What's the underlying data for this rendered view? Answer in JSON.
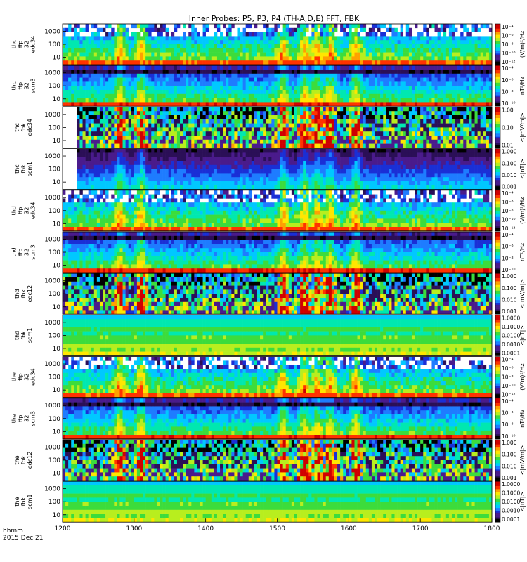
{
  "title": "Inner Probes: P5, P3, P4 (TH-A,D,E) FFT, FBK",
  "footer": {
    "units": "hhmm",
    "date": "2015 Dec 21"
  },
  "colors": {
    "colormap": [
      "#000000",
      "#2b0f57",
      "#4a1b8c",
      "#1a2fd6",
      "#1e7cff",
      "#00c8ff",
      "#00e8b0",
      "#3cdc3c",
      "#b8ee1e",
      "#ffe600",
      "#ffa000",
      "#ff3200",
      "#d00000"
    ]
  },
  "chart_data": {
    "type": "heatmap",
    "x_axis": {
      "ticks": [
        "1200",
        "1300",
        "1400",
        "1500",
        "1600",
        "1700",
        "1800"
      ],
      "range": [
        1200,
        1800
      ],
      "label": "hhmm"
    },
    "panels": [
      {
        "probe": "thc",
        "label": [
          "thc",
          "ffp",
          "32",
          "edc34"
        ],
        "kind": "ffp_e",
        "yticks": [
          "10",
          "100",
          "1000"
        ],
        "cbar_ticks": [
          "10⁻⁴",
          "10⁻⁶",
          "10⁻⁸",
          "10⁻¹⁰",
          "10⁻¹²"
        ],
        "cbar_unit": "(V/m)²/Hz"
      },
      {
        "probe": "thc",
        "label": [
          "thc",
          "ffp",
          "32",
          "scm3"
        ],
        "kind": "ffp_b",
        "yticks": [
          "10",
          "100",
          "1000"
        ],
        "cbar_ticks": [
          "10⁻⁴",
          "10⁻⁶",
          "10⁻⁸",
          "10⁻¹⁰"
        ],
        "cbar_unit": "nT²/Hz"
      },
      {
        "probe": "thc",
        "label": [
          "thc",
          "fbk",
          "edc34"
        ],
        "kind": "fbk_e",
        "yticks": [
          "10",
          "100",
          "1000"
        ],
        "cbar_ticks": [
          "1.00",
          "0.10",
          "0.01"
        ],
        "cbar_unit": "<|mV/m|>"
      },
      {
        "probe": "thc",
        "label": [
          "thc",
          "fbk",
          "scm1"
        ],
        "kind": "fbk_b",
        "yticks": [
          "10",
          "100",
          "1000"
        ],
        "cbar_ticks": [
          "1.000",
          "0.100",
          "0.010",
          "0.001"
        ],
        "cbar_unit": "<|nT|>"
      },
      {
        "probe": "thd",
        "label": [
          "thd",
          "ffp",
          "32",
          "edc34"
        ],
        "kind": "ffp_e",
        "yticks": [
          "10",
          "100",
          "1000"
        ],
        "cbar_ticks": [
          "10⁻⁴",
          "10⁻⁶",
          "10⁻⁸",
          "10⁻¹⁰",
          "10⁻¹²"
        ],
        "cbar_unit": "(V/m)²/Hz"
      },
      {
        "probe": "thd",
        "label": [
          "thd",
          "ffp",
          "32",
          "scm3"
        ],
        "kind": "ffp_b",
        "yticks": [
          "10",
          "100",
          "1000"
        ],
        "cbar_ticks": [
          "10⁻⁴",
          "10⁻⁶",
          "10⁻⁸",
          "10⁻¹⁰"
        ],
        "cbar_unit": "nT²/Hz"
      },
      {
        "probe": "thd",
        "label": [
          "thd",
          "fbk",
          "edc12"
        ],
        "kind": "fbk_e",
        "yticks": [
          "10",
          "100",
          "1000"
        ],
        "cbar_ticks": [
          "1.000",
          "0.100",
          "0.010",
          "0.001"
        ],
        "cbar_unit": "<|mV/m|>"
      },
      {
        "probe": "thd",
        "label": [
          "thd",
          "fbk",
          "scm1"
        ],
        "kind": "fbk_b_uniform",
        "yticks": [
          "10",
          "100",
          "1000"
        ],
        "cbar_ticks": [
          "1.0000",
          "0.1000",
          "0.0100",
          "0.0010",
          "0.0001"
        ],
        "cbar_unit": "<|nT|>"
      },
      {
        "probe": "the",
        "label": [
          "the",
          "ffp",
          "32",
          "edc34"
        ],
        "kind": "ffp_e",
        "yticks": [
          "10",
          "100",
          "1000"
        ],
        "cbar_ticks": [
          "10⁻⁴",
          "10⁻⁶",
          "10⁻⁸",
          "10⁻¹⁰",
          "10⁻¹²"
        ],
        "cbar_unit": "(V/m)²/Hz"
      },
      {
        "probe": "the",
        "label": [
          "the",
          "ffp",
          "32",
          "scm3"
        ],
        "kind": "ffp_b",
        "yticks": [
          "10",
          "100",
          "1000"
        ],
        "cbar_ticks": [
          "10⁻⁴",
          "10⁻⁶",
          "10⁻⁸",
          "10⁻¹⁰"
        ],
        "cbar_unit": "nT²/Hz"
      },
      {
        "probe": "the",
        "label": [
          "the",
          "fbk",
          "edc12"
        ],
        "kind": "fbk_e",
        "yticks": [
          "10",
          "100",
          "1000"
        ],
        "cbar_ticks": [
          "1.000",
          "0.100",
          "0.010",
          "0.001"
        ],
        "cbar_unit": "<|mV/m|>"
      },
      {
        "probe": "the",
        "label": [
          "the",
          "fbk",
          "scm1"
        ],
        "kind": "fbk_b_uniform",
        "yticks": [
          "10",
          "100",
          "1000"
        ],
        "cbar_ticks": [
          "1.0000",
          "0.1000",
          "0.0100",
          "0.0010",
          "0.0001"
        ],
        "cbar_unit": "<|nT|>"
      }
    ]
  }
}
